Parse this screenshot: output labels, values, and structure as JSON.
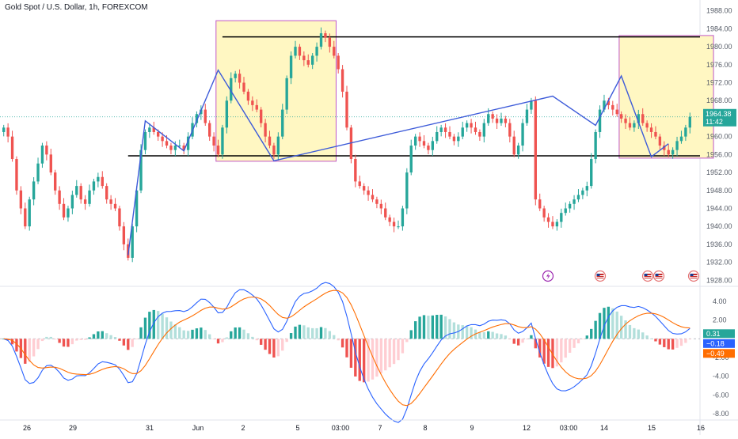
{
  "header": {
    "title": "Gold Spot / U.S. Dollar, 1h, FOREXCOM"
  },
  "colors": {
    "up": "#26a69a",
    "down": "#ef5350",
    "zone_fill": "#fff7c2",
    "zone_border": "#c058c8",
    "pattern_line": "#3d5bd9",
    "level_line": "#000000",
    "macd_line": "#2962ff",
    "signal_line": "#ff6d00",
    "grid_text": "#555b66"
  },
  "price_axis": {
    "ticks": [
      "1988.00",
      "1984.00",
      "1980.00",
      "1976.00",
      "1972.00",
      "1968.00",
      "1964.00",
      "1960.00",
      "1956.00",
      "1952.00",
      "1948.00",
      "1944.00",
      "1940.00",
      "1936.00",
      "1932.00",
      "1928.00"
    ],
    "last_price": "1964.38",
    "countdown": "11:42"
  },
  "macd_axis": {
    "ticks": [
      "4.00",
      "2.00",
      "-2.00",
      "-4.00",
      "-6.00",
      "-8.00"
    ],
    "badges": {
      "histogram": "0.31",
      "macd": "−0.18",
      "signal": "−0.49"
    }
  },
  "time_axis": {
    "labels": [
      "26",
      "29",
      "31",
      "Jun",
      "2",
      "5",
      "03:00",
      "7",
      "8",
      "9",
      "12",
      "03:00",
      "14",
      "15",
      "16"
    ]
  },
  "chart_data": [
    {
      "type": "candlestick",
      "title": "Gold Spot / U.S. Dollar, 1h, FOREXCOM",
      "ylim": [
        1927,
        1989
      ],
      "last_value": 1964.38,
      "horizontal_levels": [
        1982.2,
        1955.7
      ],
      "zones": [
        {
          "from_index": 50,
          "to_index": 77,
          "y_low": 1954.5,
          "y_high": 1985.8
        },
        {
          "from_index": 144,
          "to_index": 165,
          "y_low": 1955.2,
          "y_high": 1982.5
        }
      ],
      "pattern_points": [
        [
          29,
          1933.6
        ],
        [
          33,
          1963.5
        ],
        [
          42,
          1956.8
        ],
        [
          50,
          1974.8
        ],
        [
          63,
          1954.6
        ],
        [
          128,
          1969.0
        ],
        [
          138,
          1962.5
        ],
        [
          144,
          1973.5
        ],
        [
          151,
          1955.5
        ],
        [
          155,
          1958.4
        ]
      ],
      "closes": [
        1962,
        1960,
        1955,
        1948,
        1944,
        1940,
        1946,
        1950,
        1954,
        1958,
        1956,
        1952,
        1948,
        1945,
        1942,
        1944,
        1947,
        1949,
        1946,
        1945,
        1948,
        1950,
        1951,
        1949,
        1946,
        1945,
        1944,
        1940,
        1936,
        1933,
        1940,
        1948,
        1957,
        1961,
        1962,
        1961,
        1960,
        1959,
        1958,
        1957,
        1958,
        1958,
        1957,
        1960,
        1963,
        1965,
        1966,
        1963,
        1960,
        1958,
        1956,
        1962,
        1968,
        1973,
        1974,
        1972,
        1970,
        1968,
        1967,
        1966,
        1963,
        1960,
        1958,
        1956,
        1960,
        1966,
        1973,
        1978,
        1980,
        1978,
        1977,
        1976,
        1978,
        1980,
        1983,
        1982,
        1980,
        1978,
        1975,
        1970,
        1962,
        1955,
        1950,
        1949,
        1948,
        1947,
        1946,
        1945,
        1944,
        1942,
        1941,
        1940,
        1940,
        1944,
        1952,
        1958,
        1960,
        1959,
        1958,
        1957,
        1959,
        1961,
        1962,
        1961,
        1960,
        1959,
        1960,
        1962,
        1963,
        1962,
        1961,
        1960,
        1963,
        1965,
        1964,
        1963,
        1964,
        1963,
        1960,
        1956,
        1958,
        1963,
        1966,
        1968,
        1946,
        1944,
        1942,
        1941,
        1940,
        1941,
        1943,
        1944,
        1945,
        1946,
        1947,
        1948,
        1949,
        1955,
        1961,
        1966,
        1968,
        1967,
        1966,
        1965,
        1964,
        1963,
        1962,
        1963,
        1965,
        1963,
        1962,
        1961,
        1960,
        1958,
        1957,
        1956,
        1957,
        1959,
        1960,
        1962,
        1964.38
      ]
    },
    {
      "type": "macd",
      "ylim": [
        -8.6,
        5.1
      ],
      "histogram_last": 0.31,
      "macd_last": -0.18,
      "signal_last": -0.49
    }
  ]
}
